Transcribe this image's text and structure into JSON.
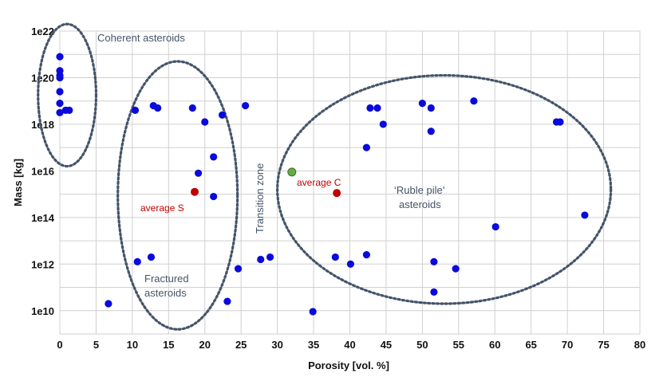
{
  "chart_data": {
    "type": "scatter",
    "xlabel": "Porosity [vol. %]",
    "ylabel": "Mass [kg]",
    "xlim": [
      0,
      80
    ],
    "ylim_log10": [
      9,
      22
    ],
    "y_scale": "log",
    "grid": true,
    "x_ticks": [
      "0",
      "5",
      "10",
      "15",
      "20",
      "25",
      "30",
      "35",
      "40",
      "45",
      "50",
      "55",
      "60",
      "65",
      "70",
      "75",
      "80"
    ],
    "y_ticks": [
      "1e10",
      "1e12",
      "1e14",
      "1e16",
      "1e18",
      "1e20",
      "1e22"
    ],
    "colors": {
      "points": "#0a0adc",
      "average": "#c00000",
      "transition_point": "#6aaa4a",
      "ellipse": "#44546a",
      "grid": "#d0d0d0"
    },
    "groups": [
      {
        "label": "Coherent asteroids",
        "x_range": [
          -3,
          5
        ],
        "log10_mass_range": [
          16.2,
          22.3
        ]
      },
      {
        "label": "Fractured asteroids",
        "x_range": [
          8,
          24.5
        ],
        "log10_mass_range": [
          9.2,
          20.7
        ]
      },
      {
        "label": "Transition zone",
        "vertical": true
      },
      {
        "label": "'Ruble pile' asteroids",
        "x_range": [
          30,
          76
        ],
        "log10_mass_range": [
          10.3,
          20.1
        ]
      }
    ],
    "points_log10": [
      [
        0.0,
        20.9
      ],
      [
        0.0,
        20.3
      ],
      [
        0.0,
        20.1
      ],
      [
        0.0,
        20.0
      ],
      [
        0.0,
        19.4
      ],
      [
        0.0,
        18.9
      ],
      [
        0.0,
        18.5
      ],
      [
        0.8,
        18.6
      ],
      [
        1.3,
        18.6
      ],
      [
        10.4,
        18.6
      ],
      [
        12.9,
        18.8
      ],
      [
        13.5,
        18.7
      ],
      [
        18.3,
        18.7
      ],
      [
        20.0,
        18.1
      ],
      [
        21.2,
        16.6
      ],
      [
        19.1,
        15.9
      ],
      [
        21.2,
        14.9
      ],
      [
        22.4,
        18.4
      ],
      [
        25.6,
        18.8
      ],
      [
        10.7,
        12.1
      ],
      [
        12.6,
        12.3
      ],
      [
        23.1,
        10.4
      ],
      [
        24.6,
        11.8
      ],
      [
        6.7,
        10.3
      ],
      [
        27.7,
        12.2
      ],
      [
        29.0,
        12.3
      ],
      [
        34.9,
        9.96
      ],
      [
        38.0,
        12.3
      ],
      [
        40.1,
        12.0
      ],
      [
        42.3,
        12.4
      ],
      [
        42.3,
        17.0
      ],
      [
        42.8,
        18.7
      ],
      [
        43.8,
        18.7
      ],
      [
        44.6,
        18.0
      ],
      [
        50.0,
        18.9
      ],
      [
        51.2,
        17.7
      ],
      [
        51.2,
        18.7
      ],
      [
        51.6,
        12.1
      ],
      [
        51.6,
        10.8
      ],
      [
        54.6,
        11.8
      ],
      [
        57.1,
        19.0
      ],
      [
        60.1,
        13.6
      ],
      [
        68.5,
        18.1
      ],
      [
        69.0,
        18.1
      ],
      [
        72.4,
        14.1
      ]
    ],
    "averages": [
      {
        "label": "average S",
        "x": 18.6,
        "log10_mass": 15.1
      },
      {
        "label": "average C",
        "x": 38.2,
        "log10_mass": 15.05
      }
    ],
    "transition_point": {
      "x": 32.0,
      "log10_mass": 15.95
    }
  }
}
